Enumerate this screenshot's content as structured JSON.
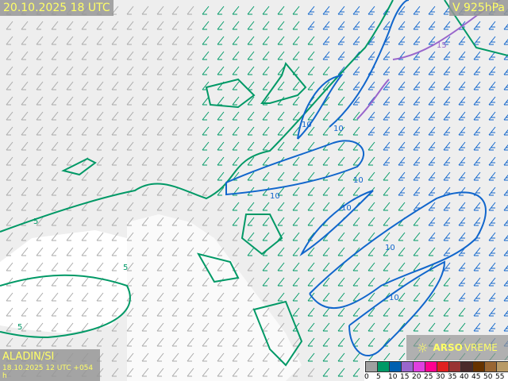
{
  "header": {
    "valid_time": "20.10.2025 18 UTC",
    "level": "V 925hPa"
  },
  "footer": {
    "model": "ALADIN/SI",
    "run": "18.10.2025 12 UTC +054 h"
  },
  "brand": {
    "name_bold": "ARSO",
    "name_light": "VREME",
    "icon": "sun-icon"
  },
  "legend": {
    "ticks": [
      "0",
      "5",
      "10",
      "15",
      "20",
      "25",
      "30",
      "35",
      "40",
      "45",
      "50",
      "55"
    ],
    "colors": [
      "#a0a0a0",
      "#009966",
      "#0060b0",
      "#9966cc",
      "#e040e0",
      "#ff0090",
      "#e02020",
      "#993333",
      "#4a2a2a",
      "#663300",
      "#996633",
      "#b89a66"
    ]
  },
  "contours": {
    "labels": [
      "5",
      "5",
      "5",
      "10",
      "10",
      "10",
      "10",
      "10",
      "10",
      "10",
      "15"
    ]
  },
  "colors": {
    "wind_5": "#009966",
    "wind_10": "#1166cc",
    "wind_15": "#9966cc",
    "land": "#f0f0f0",
    "sea": "#ffffff"
  }
}
